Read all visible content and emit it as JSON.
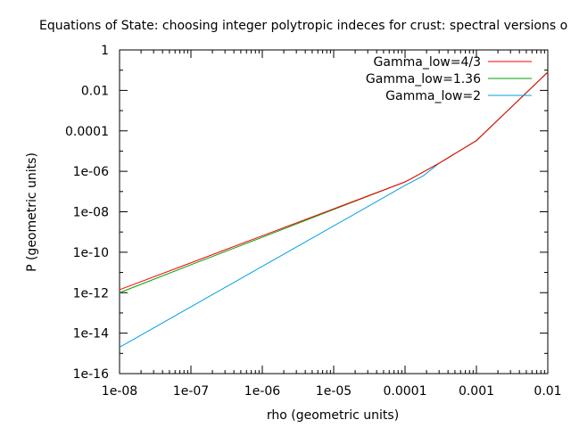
{
  "chart_data": {
    "type": "line",
    "title": "Equations of State: choosing integer polytropic indeces for crust: spectral versions o",
    "xlabel": "rho (geometric units)",
    "ylabel": "P (geometric units)",
    "xscale": "log",
    "yscale": "log",
    "xlim": [
      1e-08,
      0.01
    ],
    "ylim": [
      1e-16,
      1
    ],
    "x_ticks": [
      {
        "value": 1e-08,
        "label": "1e-08"
      },
      {
        "value": 1e-07,
        "label": "1e-07"
      },
      {
        "value": 1e-06,
        "label": "1e-06"
      },
      {
        "value": 1e-05,
        "label": "1e-05"
      },
      {
        "value": 0.0001,
        "label": "0.0001"
      },
      {
        "value": 0.001,
        "label": "0.001"
      },
      {
        "value": 0.01,
        "label": "0.01"
      }
    ],
    "y_ticks": [
      {
        "value": 1e-16,
        "label": "1e-16"
      },
      {
        "value": 1e-14,
        "label": "1e-14"
      },
      {
        "value": 1e-12,
        "label": "1e-12"
      },
      {
        "value": 1e-10,
        "label": "1e-10"
      },
      {
        "value": 1e-08,
        "label": "1e-08"
      },
      {
        "value": 1e-06,
        "label": "1e-06"
      },
      {
        "value": 0.0001,
        "label": "0.0001"
      },
      {
        "value": 0.01,
        "label": "0.01"
      },
      {
        "value": 1,
        "label": "1"
      }
    ],
    "legend_position": "top-right",
    "grid": false,
    "series": [
      {
        "name": "Gamma_low=4/3",
        "color": "#ff0000",
        "points": [
          [
            1e-08,
            1.4e-12
          ],
          [
            1e-07,
            3e-11
          ],
          [
            1e-06,
            6.5e-10
          ],
          [
            1e-05,
            1.4e-08
          ],
          [
            0.0001,
            3e-07
          ],
          [
            0.00012,
            4.2e-07
          ],
          [
            0.0003,
            2.5e-06
          ],
          [
            0.001,
            3.3e-05
          ],
          [
            0.01,
            0.08
          ]
        ]
      },
      {
        "name": "Gamma_low=1.36",
        "color": "#00a000",
        "points": [
          [
            1e-08,
            1e-12
          ],
          [
            1e-07,
            2.4e-11
          ],
          [
            1e-06,
            5.5e-10
          ],
          [
            1e-05,
            1.3e-08
          ],
          [
            0.0001,
            3e-07
          ],
          [
            0.00012,
            4.2e-07
          ],
          [
            0.0003,
            2.5e-06
          ],
          [
            0.001,
            3.3e-05
          ],
          [
            0.01,
            0.08
          ]
        ]
      },
      {
        "name": "Gamma_low=2",
        "color": "#00a0e0",
        "points": [
          [
            1e-08,
            2e-15
          ],
          [
            1e-07,
            2e-13
          ],
          [
            1e-06,
            2e-11
          ],
          [
            1e-05,
            2e-09
          ],
          [
            0.0001,
            2e-07
          ],
          [
            0.00018,
            6e-07
          ],
          [
            0.0003,
            2.5e-06
          ],
          [
            0.001,
            3.3e-05
          ],
          [
            0.01,
            0.08
          ]
        ]
      }
    ]
  }
}
